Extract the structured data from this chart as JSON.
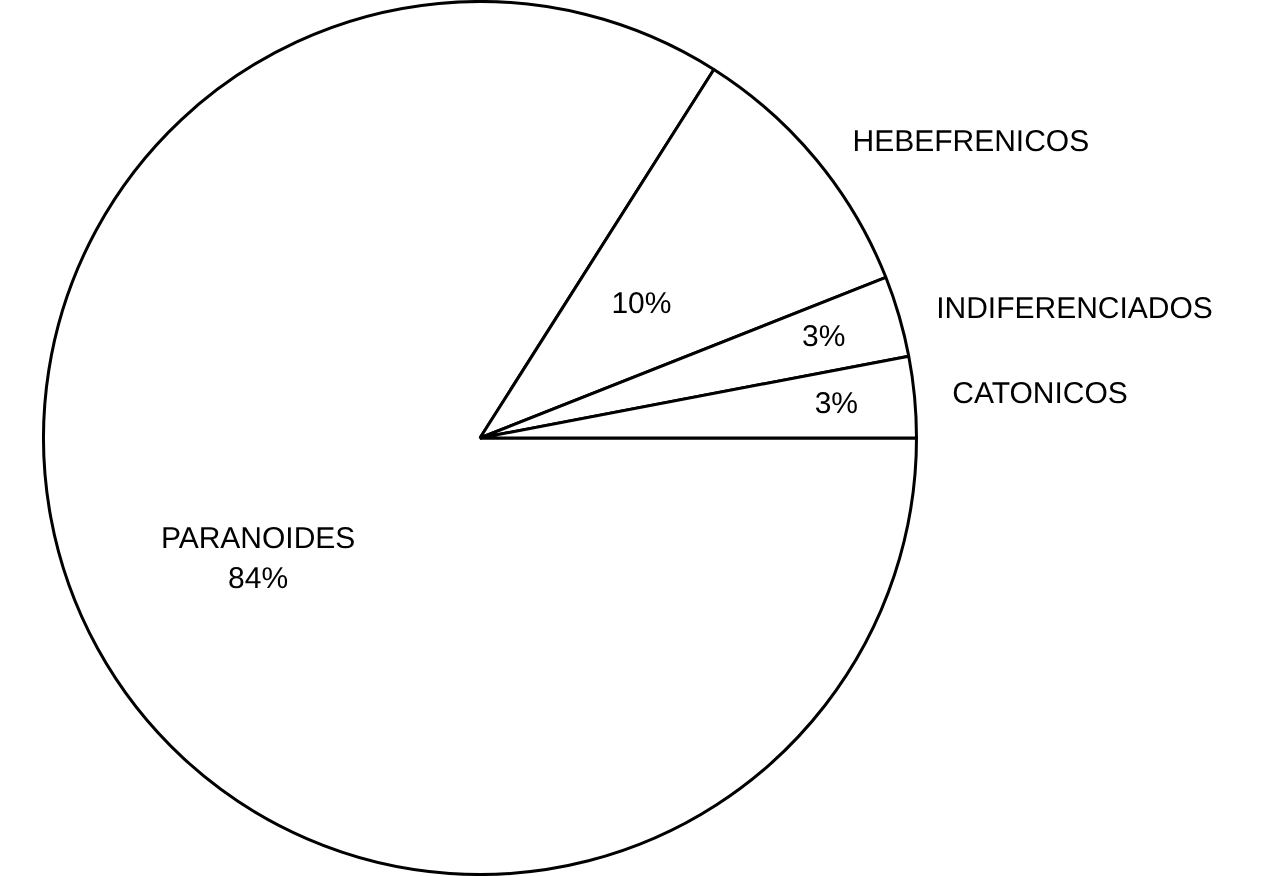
{
  "chart_data": {
    "type": "pie",
    "categories": [
      "PARANOIDES",
      "HEBEFRENICOS",
      "INDIFERENCIADOS",
      "CATONICOS"
    ],
    "values": [
      84,
      10,
      3,
      3
    ],
    "value_labels": [
      "84%",
      "10%",
      "3%",
      "3%"
    ],
    "colors": [
      "#ffffff",
      "#ffffff",
      "#ffffff",
      "#ffffff"
    ],
    "legend": false
  }
}
